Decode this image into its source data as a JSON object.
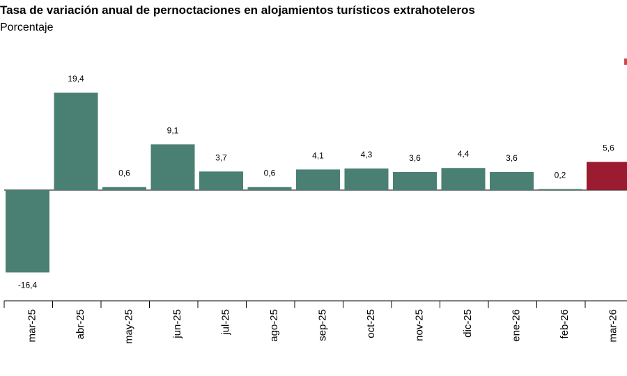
{
  "chart_data": {
    "type": "bar",
    "title": "Tasa de variación anual de pernoctaciones en alojamientos turísticos extrahoteleros",
    "subtitle": "Porcentaje",
    "categories": [
      "mar-25",
      "abr-25",
      "may-25",
      "jun-25",
      "jul-25",
      "ago-25",
      "sep-25",
      "oct-25",
      "nov-25",
      "dic-25",
      "ene-26",
      "feb-26",
      "mar-26"
    ],
    "value_labels": [
      "-16,4",
      "19,4",
      "0,6",
      "9,1",
      "3,7",
      "0,6",
      "4,1",
      "4,3",
      "3,6",
      "4,4",
      "3,6",
      "0,2",
      "5,6"
    ],
    "values": [
      -16.4,
      19.4,
      0.6,
      9.1,
      3.7,
      0.6,
      4.1,
      4.3,
      3.6,
      4.4,
      3.6,
      0.2,
      5.6
    ],
    "highlight_index": 12,
    "xlabel": "",
    "ylabel": "",
    "ylim": [
      -16.4,
      19.4
    ],
    "grid": false,
    "colors": {
      "bar": "#4a7f74",
      "highlight": "#9b1b30",
      "axis": "#000000",
      "legend_marker": "#cc4a4a"
    }
  }
}
